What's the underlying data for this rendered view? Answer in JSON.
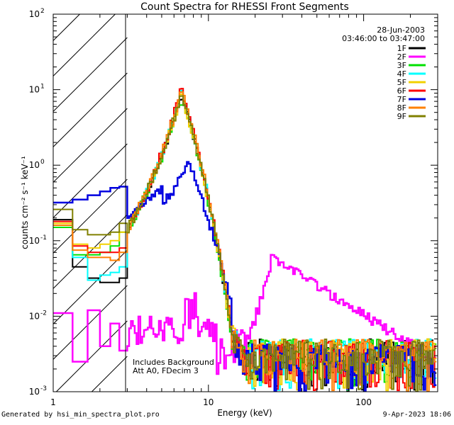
{
  "chart_data": {
    "type": "line",
    "title": "Count Spectra for RHESSI Front Segments",
    "xlabel": "Energy (keV)",
    "ylabel": "counts cm⁻² s⁻¹ keV⁻¹",
    "xscale": "log",
    "yscale": "log",
    "xlim": [
      1,
      300
    ],
    "ylim": [
      0.001,
      100
    ],
    "x_ticks": [
      {
        "value": 1,
        "label": "1"
      },
      {
        "value": 10,
        "label": "10"
      },
      {
        "value": 100,
        "label": "100"
      }
    ],
    "y_ticks": [
      {
        "value": 0.001,
        "base": "10",
        "exp": "-3"
      },
      {
        "value": 0.01,
        "base": "10",
        "exp": "-2"
      },
      {
        "value": 0.1,
        "base": "10",
        "exp": "-1"
      },
      {
        "value": 1,
        "base": "10",
        "exp": "0"
      },
      {
        "value": 10,
        "base": "10",
        "exp": "1"
      },
      {
        "value": 100,
        "base": "10",
        "exp": "2"
      }
    ],
    "hatched_region_keV": [
      1,
      3
    ],
    "date": "28-Jun-2003",
    "time_range": "03:46:00 to 03:47:00",
    "annotations": [
      "Includes Background",
      "Att A0, FDecim 3"
    ],
    "legend_position": "top-right",
    "series": [
      {
        "name": "1F",
        "color": "#000000",
        "low": [
          0.19,
          0.045,
          0.032,
          0.028,
          0.028,
          0.032,
          0.04,
          0.045,
          0.12
        ]
      },
      {
        "name": "2F",
        "color": "#ff00ff",
        "low": [
          0.011,
          0.0025,
          0.012,
          0.004,
          0.008,
          0.0035,
          0.0035,
          0.006,
          0.0095
        ]
      },
      {
        "name": "3F",
        "color": "#00e000",
        "low": [
          0.15,
          0.065,
          0.065,
          0.07,
          0.085,
          0.13,
          0.17,
          0.22,
          0.15
        ]
      },
      {
        "name": "4F",
        "color": "#00ffff",
        "low": [
          0.16,
          0.06,
          0.03,
          0.035,
          0.038,
          0.045,
          0.05,
          0.055,
          0.15
        ]
      },
      {
        "name": "5F",
        "color": "#f2d000",
        "low": [
          0.17,
          0.09,
          0.08,
          0.09,
          0.1,
          0.13,
          0.2,
          0.28,
          0.15
        ]
      },
      {
        "name": "6F",
        "color": "#ff0000",
        "low": [
          0.18,
          0.085,
          0.07,
          0.07,
          0.07,
          0.08,
          0.11,
          0.15,
          0.2
        ]
      },
      {
        "name": "7F",
        "color": "#0000e0",
        "low": [
          0.32,
          0.35,
          0.4,
          0.45,
          0.5,
          0.52,
          0.55,
          0.5,
          0.6
        ]
      },
      {
        "name": "8F",
        "color": "#ff8000",
        "low": [
          0.16,
          0.075,
          0.06,
          0.06,
          0.055,
          0.07,
          0.09,
          0.12,
          0.19
        ]
      },
      {
        "name": "9F",
        "color": "#808000",
        "low": [
          0.26,
          0.14,
          0.12,
          0.12,
          0.13,
          0.17,
          0.22,
          0.26,
          0.24
        ]
      }
    ]
  },
  "footer": {
    "left": "Generated by hsi_min_spectra_plot.pro",
    "right": "9-Apr-2023 18:06"
  }
}
